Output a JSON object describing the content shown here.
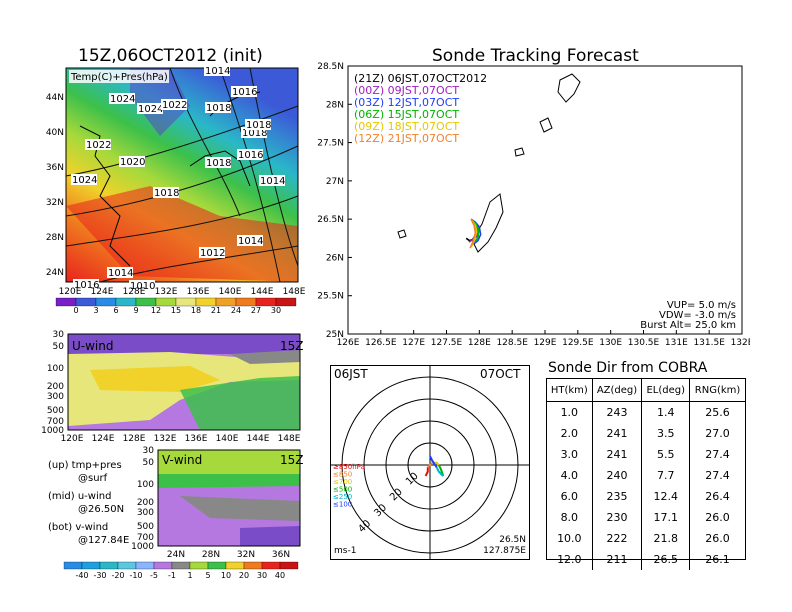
{
  "map_panel": {
    "title": "15Z,06OCT2012 (init)",
    "label": "Temp(C)+Pres(hPa)",
    "lat_ticks": [
      "44N",
      "40N",
      "36N",
      "32N",
      "28N",
      "24N"
    ],
    "lon_ticks": [
      "120E",
      "124E",
      "128E",
      "132E",
      "136E",
      "140E",
      "144E",
      "148E"
    ],
    "isobar_labels": [
      "1014",
      "1024",
      "1024",
      "1022",
      "1018",
      "1016",
      "1022",
      "1020",
      "1018",
      "1018",
      "1014",
      "1016",
      "1018",
      "1024",
      "1018",
      "1014",
      "1012",
      "1014",
      "1010",
      "1016"
    ],
    "colorbar_labels": [
      "0",
      "3",
      "6",
      "9",
      "12",
      "15",
      "18",
      "21",
      "24",
      "27",
      "30"
    ]
  },
  "uwind_panel": {
    "label": "U-wind",
    "time": "15Z",
    "p_ticks": [
      "30",
      "50",
      "100",
      "200",
      "300",
      "500",
      "700",
      "1000"
    ],
    "lon_ticks": [
      "120E",
      "124E",
      "128E",
      "132E",
      "136E",
      "140E",
      "144E",
      "148E"
    ]
  },
  "vwind_panel": {
    "label": "V-wind",
    "time": "15Z",
    "p_ticks": [
      "30",
      "50",
      "100",
      "200",
      "300",
      "500",
      "700",
      "1000"
    ],
    "lat_ticks": [
      "24N",
      "28N",
      "32N",
      "36N"
    ]
  },
  "legend_notes": {
    "up": "(up) tmp+pres",
    "up_sub": "@surf",
    "mid": "(mid) u-wind",
    "mid_sub": "@26.50N",
    "bot": "(bot) v-wind",
    "bot_sub": "@127.84E"
  },
  "wind_colorbar_labels": [
    "-40",
    "-30",
    "-20",
    "-10",
    "-5",
    "-1",
    "1",
    "5",
    "10",
    "20",
    "30",
    "40"
  ],
  "track_panel": {
    "title": "Sonde Tracking Forecast",
    "lat_ticks": [
      "28.5N",
      "28N",
      "27.5N",
      "27N",
      "26.5N",
      "26N",
      "25.5N",
      "25N"
    ],
    "lon_ticks": [
      "126E",
      "126.5E",
      "127E",
      "127.5E",
      "128E",
      "128.5E",
      "129E",
      "129.5E",
      "130E",
      "130.5E",
      "131E",
      "131.5E",
      "132E"
    ],
    "legend": [
      {
        "text": "(21Z)  06JST,07OCT2012",
        "color": "#000000"
      },
      {
        "text": "(00Z)  09JST,07OCT",
        "color": "#a020c0"
      },
      {
        "text": "(03Z)  12JST,07OCT",
        "color": "#1e3cff"
      },
      {
        "text": "(06Z)  15JST,07OCT",
        "color": "#00b400"
      },
      {
        "text": "(09Z)  18JST,07OCT",
        "color": "#e6c800"
      },
      {
        "text": "(12Z)  21JST,07OCT",
        "color": "#f08228"
      }
    ],
    "params": [
      "VUP=  5.0  m/s",
      "VDW= -3.0  m/s",
      "Burst Alt=  25.0  km"
    ]
  },
  "hodograph": {
    "time_label": "06JST",
    "date_label": "07OCT",
    "ring_labels": [
      "10",
      "20",
      "30",
      "40"
    ],
    "level_legend": [
      {
        "text": "≥850hPa",
        "color": "#e01010"
      },
      {
        "text": "≤850",
        "color": "#f08228"
      },
      {
        "text": "≤700",
        "color": "#e6c800"
      },
      {
        "text": "≤500",
        "color": "#00b400"
      },
      {
        "text": "≤250",
        "color": "#00b4c8"
      },
      {
        "text": "≤100",
        "color": "#1e3cff"
      }
    ],
    "units": "ms-1",
    "loc_lat": "26.5N",
    "loc_lon": "127.875E"
  },
  "sonde_dir": {
    "title": "Sonde Dir from COBRA",
    "headers": [
      "HT(km)",
      "AZ(deg)",
      "EL(deg)",
      "RNG(km)"
    ],
    "rows": [
      [
        "1.0",
        "243",
        "1.4",
        "25.6"
      ],
      [
        "2.0",
        "241",
        "3.5",
        "27.0"
      ],
      [
        "3.0",
        "241",
        "5.5",
        "27.4"
      ],
      [
        "4.0",
        "240",
        "7.7",
        "27.4"
      ],
      [
        "6.0",
        "235",
        "12.4",
        "26.4"
      ],
      [
        "8.0",
        "230",
        "17.1",
        "26.0"
      ],
      [
        "10.0",
        "222",
        "21.8",
        "26.0"
      ],
      [
        "12.0",
        "211",
        "26.5",
        "26.1"
      ]
    ]
  },
  "chart_data": [
    {
      "type": "heatmap",
      "title": "15Z,06OCT2012 (init)",
      "field": "Temp(C)+Pres(hPa)",
      "xlim": [
        120,
        150
      ],
      "ylim": [
        22,
        48
      ],
      "colorbar": [
        0,
        3,
        6,
        9,
        12,
        15,
        18,
        21,
        24,
        27,
        30
      ],
      "isobar_values": [
        1010,
        1012,
        1014,
        1016,
        1018,
        1020,
        1022,
        1024
      ]
    },
    {
      "type": "heatmap",
      "title": "U-wind",
      "x_axis": "longitude",
      "y_axis": "pressure (hPa)",
      "xlim": [
        120,
        150
      ],
      "ylim": [
        1000,
        30
      ],
      "colorbar": [
        -40,
        -30,
        -20,
        -10,
        -5,
        -1,
        1,
        5,
        10,
        20,
        30,
        40
      ]
    },
    {
      "type": "heatmap",
      "title": "V-wind",
      "x_axis": "latitude",
      "y_axis": "pressure (hPa)",
      "xlim": [
        22,
        38
      ],
      "ylim": [
        1000,
        30
      ],
      "colorbar": [
        -40,
        -30,
        -20,
        -10,
        -5,
        -1,
        1,
        5,
        10,
        20,
        30,
        40
      ]
    },
    {
      "type": "line",
      "title": "Sonde Tracking Forecast",
      "xlim": [
        126,
        132
      ],
      "ylim": [
        25,
        28.5
      ],
      "series": [
        {
          "name": "(21Z)  06JST,07OCT2012",
          "color": "#000000",
          "x": [
            127.875,
            127.93,
            127.98,
            127.98,
            127.92,
            127.85,
            127.8
          ],
          "y": [
            26.5,
            26.46,
            26.4,
            26.3,
            26.24,
            26.22,
            26.25
          ]
        },
        {
          "name": "(00Z)  09JST,07OCT",
          "color": "#a020c0",
          "x": [
            127.875,
            127.93,
            127.97,
            127.96,
            127.9,
            127.84
          ],
          "y": [
            26.5,
            26.45,
            26.38,
            26.29,
            26.23,
            26.2
          ]
        },
        {
          "name": "(03Z)  12JST,07OCT",
          "color": "#1e3cff",
          "x": [
            127.875,
            127.94,
            128.0,
            128.02,
            127.98,
            127.92
          ],
          "y": [
            26.5,
            26.46,
            26.4,
            26.3,
            26.22,
            26.18
          ]
        },
        {
          "name": "(06Z)  15JST,07OCT",
          "color": "#00b400",
          "x": [
            127.875,
            127.95,
            127.99,
            127.98,
            127.93
          ],
          "y": [
            26.5,
            26.44,
            26.36,
            26.26,
            26.2
          ]
        },
        {
          "name": "(09Z)  18JST,07OCT",
          "color": "#e6c800",
          "x": [
            127.875,
            127.94,
            127.96,
            127.92,
            127.88
          ],
          "y": [
            26.5,
            26.42,
            26.33,
            26.22,
            26.14
          ]
        },
        {
          "name": "(12Z)  21JST,07OCT",
          "color": "#f08228",
          "x": [
            127.875,
            127.92,
            127.94,
            127.9,
            127.86
          ],
          "y": [
            26.5,
            26.42,
            26.32,
            26.2,
            26.12
          ]
        }
      ]
    },
    {
      "type": "scatter",
      "title": "hodograph",
      "ring_values": [
        10,
        20,
        30,
        40
      ],
      "series": [
        {
          "name": "≥850hPa",
          "color": "#e01010",
          "u": [
            -2,
            -1,
            -1
          ],
          "v": [
            -5,
            -3,
            -1
          ]
        },
        {
          "name": "≤850",
          "color": "#f08228",
          "u": [
            -1,
            0,
            1
          ],
          "v": [
            -1,
            0,
            1
          ]
        },
        {
          "name": "≤700",
          "color": "#e6c800",
          "u": [
            1,
            3,
            4
          ],
          "v": [
            1,
            1,
            0
          ]
        },
        {
          "name": "≤500",
          "color": "#00b400",
          "u": [
            4,
            5,
            6
          ],
          "v": [
            0,
            -2,
            -5
          ]
        },
        {
          "name": "≤250",
          "color": "#00b4c8",
          "u": [
            6,
            4,
            3
          ],
          "v": [
            -5,
            -3,
            -1
          ]
        },
        {
          "name": "≤100",
          "color": "#1e3cff",
          "u": [
            3,
            1,
            0
          ],
          "v": [
            -1,
            2,
            4
          ]
        }
      ]
    },
    {
      "type": "table",
      "title": "Sonde Dir from COBRA",
      "columns": [
        "HT(km)",
        "AZ(deg)",
        "EL(deg)",
        "RNG(km)"
      ],
      "rows": [
        [
          1.0,
          243,
          1.4,
          25.6
        ],
        [
          2.0,
          241,
          3.5,
          27.0
        ],
        [
          3.0,
          241,
          5.5,
          27.4
        ],
        [
          4.0,
          240,
          7.7,
          27.4
        ],
        [
          6.0,
          235,
          12.4,
          26.4
        ],
        [
          8.0,
          230,
          17.1,
          26.0
        ],
        [
          10.0,
          222,
          21.8,
          26.0
        ],
        [
          12.0,
          211,
          26.5,
          26.1
        ]
      ]
    }
  ]
}
